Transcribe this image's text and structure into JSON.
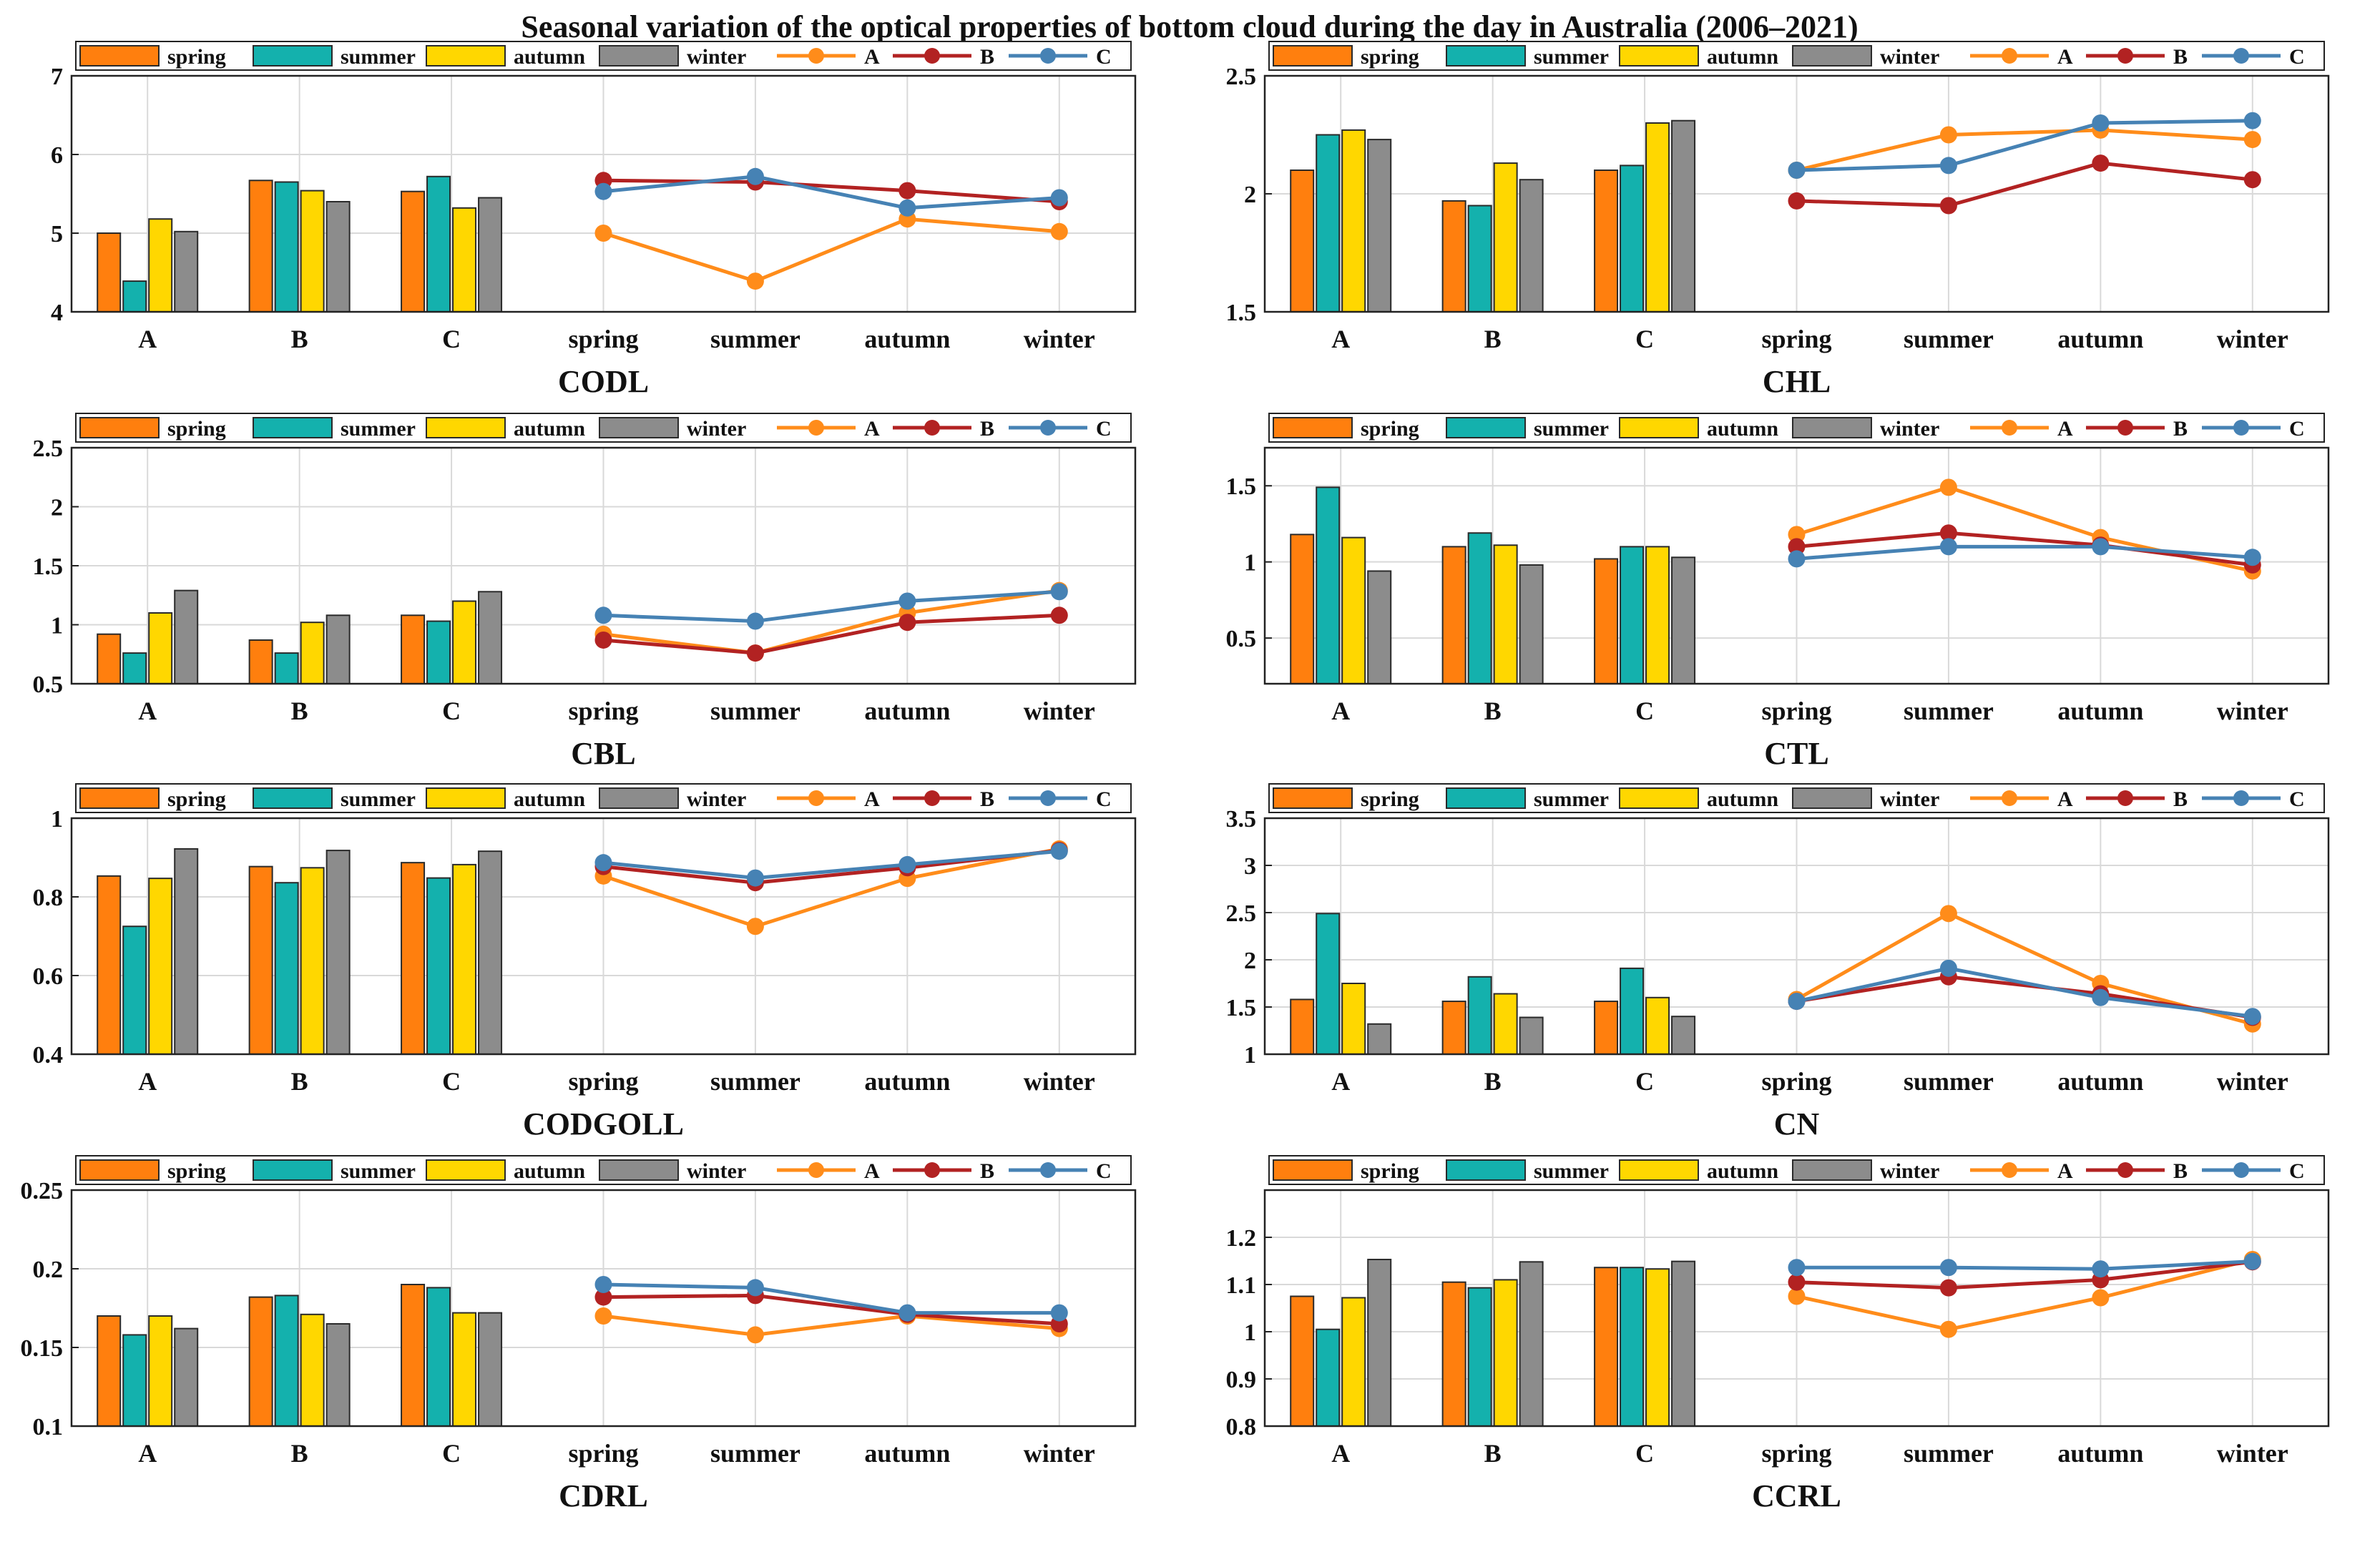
{
  "figure_title": "Seasonal variation of the optical properties of bottom cloud during the day in Australia (2006–2021)",
  "legend": {
    "bars": [
      "spring",
      "summer",
      "autumn",
      "winter"
    ],
    "lines": [
      "A",
      "B",
      "C"
    ]
  },
  "colors": {
    "spring": "#ff7f0e",
    "summer": "#14b1ad",
    "autumn": "#ffd700",
    "winter": "#8c8c8c",
    "A": "#ff8c1a",
    "B": "#b22222",
    "C": "#4682b4",
    "grid": "#d9d9d9",
    "axis": "#222222"
  },
  "chart_data": [
    {
      "type": "bar+line",
      "title": "CODL",
      "bar_categories": [
        "A",
        "B",
        "C"
      ],
      "line_categories": [
        "spring",
        "summer",
        "autumn",
        "winter"
      ],
      "ylim": [
        4,
        7
      ],
      "yticks": [
        4,
        5,
        6,
        7
      ],
      "series": [
        {
          "name": "A",
          "values": [
            5.0,
            4.39,
            5.18,
            5.02
          ]
        },
        {
          "name": "B",
          "values": [
            5.67,
            5.65,
            5.54,
            5.4
          ]
        },
        {
          "name": "C",
          "values": [
            5.53,
            5.72,
            5.32,
            5.45
          ]
        }
      ]
    },
    {
      "type": "bar+line",
      "title": "CHL",
      "bar_categories": [
        "A",
        "B",
        "C"
      ],
      "line_categories": [
        "spring",
        "summer",
        "autumn",
        "winter"
      ],
      "ylim": [
        1.5,
        2.5
      ],
      "yticks": [
        1.5,
        2,
        2.5
      ],
      "series": [
        {
          "name": "A",
          "values": [
            2.1,
            2.25,
            2.27,
            2.23
          ]
        },
        {
          "name": "B",
          "values": [
            1.97,
            1.95,
            2.13,
            2.06
          ]
        },
        {
          "name": "C",
          "values": [
            2.1,
            2.12,
            2.3,
            2.31
          ]
        }
      ]
    },
    {
      "type": "bar+line",
      "title": "CBL",
      "bar_categories": [
        "A",
        "B",
        "C"
      ],
      "line_categories": [
        "spring",
        "summer",
        "autumn",
        "winter"
      ],
      "ylim": [
        0.5,
        2.5
      ],
      "yticks": [
        0.5,
        1,
        1.5,
        2,
        2.5
      ],
      "series": [
        {
          "name": "A",
          "values": [
            0.92,
            0.76,
            1.1,
            1.29
          ]
        },
        {
          "name": "B",
          "values": [
            0.87,
            0.76,
            1.02,
            1.08
          ]
        },
        {
          "name": "C",
          "values": [
            1.08,
            1.03,
            1.2,
            1.28
          ]
        }
      ]
    },
    {
      "type": "bar+line",
      "title": "CTL",
      "bar_categories": [
        "A",
        "B",
        "C"
      ],
      "line_categories": [
        "spring",
        "summer",
        "autumn",
        "winter"
      ],
      "ylim": [
        0.2,
        1.75
      ],
      "yticks": [
        0.5,
        1,
        1.5
      ],
      "series": [
        {
          "name": "A",
          "values": [
            1.18,
            1.49,
            1.16,
            0.94
          ]
        },
        {
          "name": "B",
          "values": [
            1.1,
            1.19,
            1.11,
            0.98
          ]
        },
        {
          "name": "C",
          "values": [
            1.02,
            1.1,
            1.1,
            1.03
          ]
        }
      ]
    },
    {
      "type": "bar+line",
      "title": "CODGOLL",
      "bar_categories": [
        "A",
        "B",
        "C"
      ],
      "line_categories": [
        "spring",
        "summer",
        "autumn",
        "winter"
      ],
      "ylim": [
        0.4,
        1.0
      ],
      "yticks": [
        0.4,
        0.6,
        0.8,
        1
      ],
      "series": [
        {
          "name": "A",
          "values": [
            0.853,
            0.725,
            0.847,
            0.922
          ]
        },
        {
          "name": "B",
          "values": [
            0.877,
            0.836,
            0.874,
            0.918
          ]
        },
        {
          "name": "C",
          "values": [
            0.887,
            0.848,
            0.882,
            0.916
          ]
        }
      ]
    },
    {
      "type": "bar+line",
      "title": "CN",
      "bar_categories": [
        "A",
        "B",
        "C"
      ],
      "line_categories": [
        "spring",
        "summer",
        "autumn",
        "winter"
      ],
      "ylim": [
        1,
        3.5
      ],
      "yticks": [
        1,
        1.5,
        2,
        2.5,
        3,
        3.5
      ],
      "series": [
        {
          "name": "A",
          "values": [
            1.58,
            2.49,
            1.75,
            1.32
          ]
        },
        {
          "name": "B",
          "values": [
            1.56,
            1.82,
            1.64,
            1.39
          ]
        },
        {
          "name": "C",
          "values": [
            1.56,
            1.91,
            1.6,
            1.4
          ]
        }
      ]
    },
    {
      "type": "bar+line",
      "title": "CDRL",
      "bar_categories": [
        "A",
        "B",
        "C"
      ],
      "line_categories": [
        "spring",
        "summer",
        "autumn",
        "winter"
      ],
      "ylim": [
        0.1,
        0.25
      ],
      "yticks": [
        0.1,
        0.15,
        0.2,
        0.25
      ],
      "series": [
        {
          "name": "A",
          "values": [
            0.17,
            0.158,
            0.17,
            0.162
          ]
        },
        {
          "name": "B",
          "values": [
            0.182,
            0.183,
            0.171,
            0.165
          ]
        },
        {
          "name": "C",
          "values": [
            0.19,
            0.188,
            0.172,
            0.172
          ]
        }
      ]
    },
    {
      "type": "bar+line",
      "title": "CCRL",
      "bar_categories": [
        "A",
        "B",
        "C"
      ],
      "line_categories": [
        "spring",
        "summer",
        "autumn",
        "winter"
      ],
      "ylim": [
        0.8,
        1.3
      ],
      "yticks": [
        0.8,
        0.9,
        1,
        1.1,
        1.2
      ],
      "series": [
        {
          "name": "A",
          "values": [
            1.075,
            1.005,
            1.072,
            1.153
          ]
        },
        {
          "name": "B",
          "values": [
            1.105,
            1.093,
            1.11,
            1.148
          ]
        },
        {
          "name": "C",
          "values": [
            1.136,
            1.136,
            1.133,
            1.149
          ]
        }
      ]
    }
  ]
}
